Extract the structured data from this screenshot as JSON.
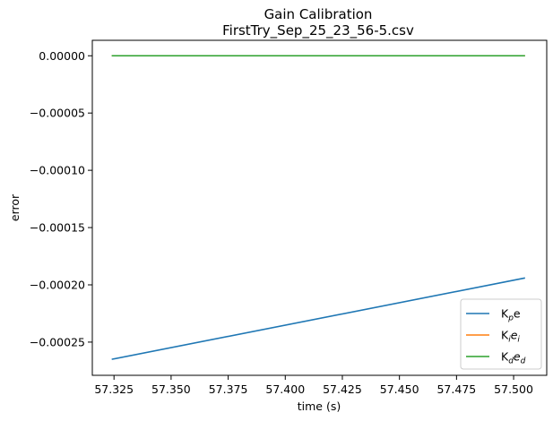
{
  "chart_data": {
    "type": "line",
    "title": "Gain Calibration",
    "subtitle": "FirstTry_Sep_25_23_56-5.csv",
    "xlabel": "time (s)",
    "ylabel": "error",
    "xlim": [
      57.3155,
      57.5145
    ],
    "ylim": [
      -0.000279,
      1.35e-05
    ],
    "x_ticks": [
      57.325,
      57.35,
      57.375,
      57.4,
      57.425,
      57.45,
      57.475,
      57.5
    ],
    "x_tick_labels": [
      "57.325",
      "57.350",
      "57.375",
      "57.400",
      "57.425",
      "57.450",
      "57.475",
      "57.500"
    ],
    "y_ticks": [
      0,
      -5e-05,
      -0.0001,
      -0.00015,
      -0.0002,
      -0.00025
    ],
    "y_tick_labels": [
      "0.00000",
      "−0.00005",
      "−0.00010",
      "−0.00015",
      "−0.00020",
      "−0.00025"
    ],
    "grid": false,
    "legend_position": "lower-right",
    "series": [
      {
        "name": "Kpe",
        "legend_main": "K",
        "legend_sub": "p",
        "legend_tail": "e",
        "color": "#1f77b4",
        "x": [
          57.324,
          57.505
        ],
        "y": [
          -0.000265,
          -0.000194
        ]
      },
      {
        "name": "Kiei",
        "legend_main": "K",
        "legend_sub": "i",
        "legend_tail": "e",
        "legend_tail_sub": "i",
        "color": "#ff7f0e",
        "x": [
          57.324,
          57.505
        ],
        "y": [
          0,
          0
        ]
      },
      {
        "name": "Kded",
        "legend_main": "K",
        "legend_sub": "d",
        "legend_tail": "e",
        "legend_tail_sub": "d",
        "color": "#2ca02c",
        "x": [
          57.324,
          57.505
        ],
        "y": [
          0,
          0
        ]
      }
    ]
  }
}
